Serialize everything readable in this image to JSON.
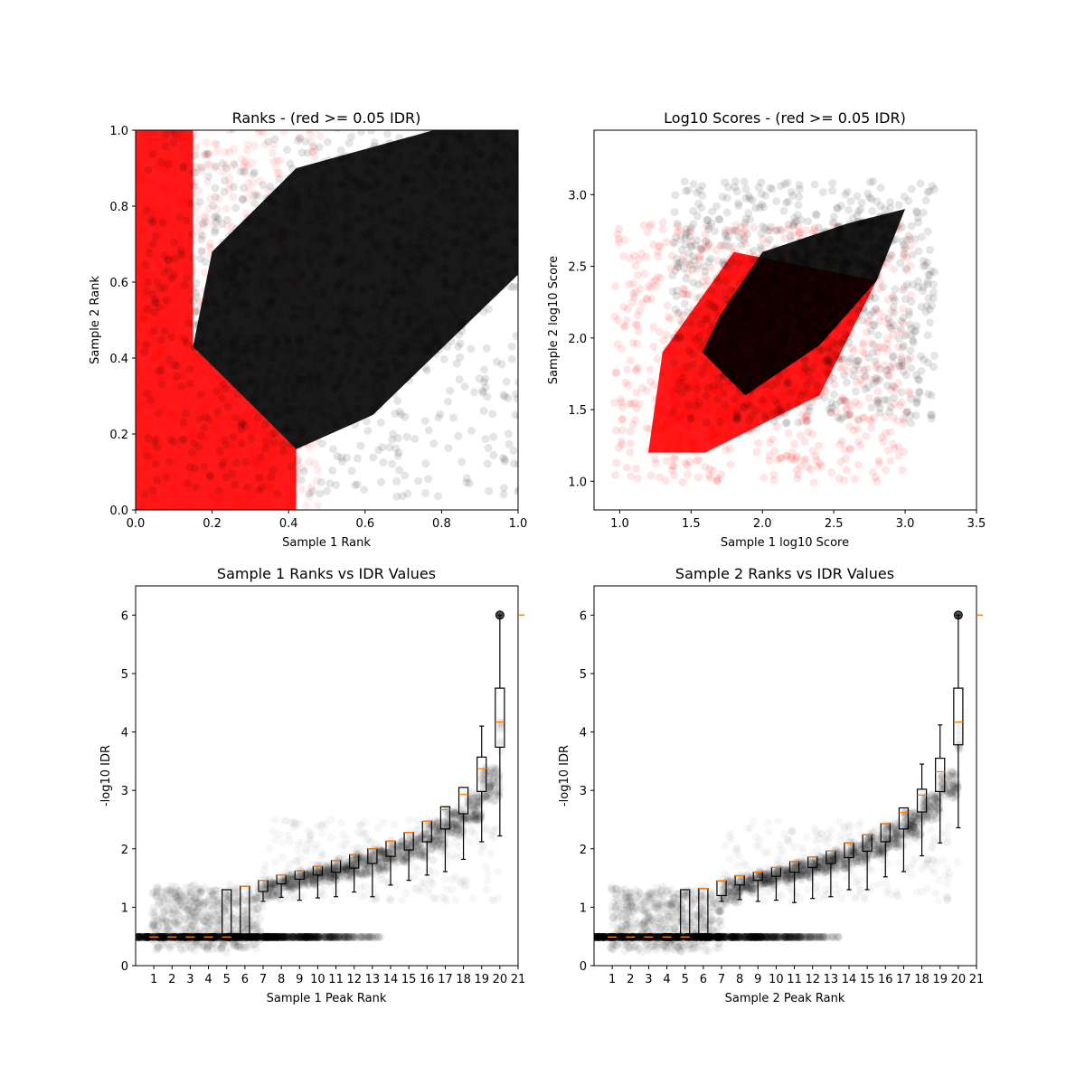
{
  "chart_data": [
    {
      "id": "ranks",
      "type": "scatter",
      "title": "Ranks - (red >= 0.05 IDR)",
      "xlabel": "Sample 1 Rank",
      "ylabel": "Sample 2 Rank",
      "xlim": [
        0.0,
        1.0
      ],
      "ylim": [
        0.0,
        1.0
      ],
      "xticks": [
        "0.0",
        "0.2",
        "0.4",
        "0.6",
        "0.8",
        "1.0"
      ],
      "yticks": [
        "0.0",
        "0.2",
        "0.4",
        "0.6",
        "0.8",
        "1.0"
      ],
      "series": [
        {
          "color": "#ff0000",
          "alpha": 0.08,
          "region": [
            [
              0,
              0
            ],
            [
              0.42,
              0
            ],
            [
              0.42,
              0.16
            ],
            [
              0.15,
              0.43
            ],
            [
              0.15,
              1
            ],
            [
              0,
              1
            ]
          ],
          "approx_points": 1400
        },
        {
          "color": "#000000",
          "alpha": 0.1,
          "region": [
            [
              0.15,
              0.43
            ],
            [
              0.42,
              0.16
            ],
            [
              0.62,
              0.25
            ],
            [
              1,
              0.62
            ],
            [
              1,
              1
            ],
            [
              0.78,
              1
            ],
            [
              0.42,
              0.9
            ],
            [
              0.2,
              0.68
            ]
          ],
          "approx_points": 1600
        }
      ]
    },
    {
      "id": "log10",
      "type": "scatter",
      "title": "Log10 Scores - (red >= 0.05 IDR)",
      "xlabel": "Sample 1 log10 Score",
      "ylabel": "Sample 2 log10 Score",
      "xlim": [
        0.82,
        3.5
      ],
      "ylim": [
        0.8,
        3.45
      ],
      "xticks": [
        1.0,
        1.5,
        2.0,
        2.5,
        3.0,
        3.5
      ],
      "yticks": [
        1.0,
        1.5,
        2.0,
        2.5,
        3.0
      ],
      "series": [
        {
          "color": "#ff0000",
          "alpha": 0.1,
          "region": [
            [
              1.2,
              1.2
            ],
            [
              1.6,
              1.2
            ],
            [
              2.4,
              1.6
            ],
            [
              2.8,
              2.4
            ],
            [
              1.8,
              2.6
            ],
            [
              1.3,
              1.9
            ]
          ],
          "approx_points": 1400
        },
        {
          "color": "#000000",
          "alpha": 0.1,
          "region": [
            [
              1.58,
              1.9
            ],
            [
              1.88,
              1.6
            ],
            [
              2.4,
              1.95
            ],
            [
              2.8,
              2.4
            ],
            [
              3.0,
              2.9
            ],
            [
              2.6,
              2.8
            ],
            [
              2.0,
              2.6
            ],
            [
              1.7,
              2.15
            ]
          ],
          "approx_points": 1200
        }
      ]
    },
    {
      "id": "s1idr",
      "type": "box",
      "title": "Sample 1 Ranks vs IDR Values",
      "xlabel": "Sample 1 Peak Rank",
      "ylabel": "-log10 IDR",
      "xlim": [
        0,
        21
      ],
      "ylim": [
        0,
        6.5
      ],
      "xticks": [
        "1",
        "2",
        "3",
        "4",
        "5",
        "6",
        "7",
        "8",
        "9",
        "10",
        "11",
        "12",
        "13",
        "14",
        "15",
        "16",
        "17",
        "18",
        "19",
        "20",
        "21"
      ],
      "yticks": [
        "0",
        "1",
        "2",
        "3",
        "4",
        "5",
        "6"
      ],
      "boxes": [
        {
          "x": 1,
          "q1": 0.49,
          "median": 0.49,
          "q3": 0.49,
          "wlo": 0.49,
          "whi": 0.49
        },
        {
          "x": 2,
          "q1": 0.49,
          "median": 0.49,
          "q3": 0.49,
          "wlo": 0.49,
          "whi": 0.49
        },
        {
          "x": 3,
          "q1": 0.49,
          "median": 0.49,
          "q3": 0.49,
          "wlo": 0.49,
          "whi": 0.49
        },
        {
          "x": 4,
          "q1": 0.49,
          "median": 0.49,
          "q3": 0.49,
          "wlo": 0.49,
          "whi": 0.49
        },
        {
          "x": 5,
          "q1": 0.49,
          "median": 0.49,
          "q3": 1.3,
          "wlo": 0.49,
          "whi": 1.3
        },
        {
          "x": 6,
          "q1": 0.49,
          "median": 1.36,
          "q3": 1.36,
          "wlo": 0.49,
          "whi": 1.36
        },
        {
          "x": 7,
          "q1": 1.27,
          "median": 1.46,
          "q3": 1.46,
          "wlo": 1.1,
          "whi": 1.46
        },
        {
          "x": 8,
          "q1": 1.4,
          "median": 1.55,
          "q3": 1.55,
          "wlo": 1.17,
          "whi": 1.55
        },
        {
          "x": 9,
          "q1": 1.48,
          "median": 1.62,
          "q3": 1.62,
          "wlo": 1.12,
          "whi": 1.62
        },
        {
          "x": 10,
          "q1": 1.55,
          "median": 1.7,
          "q3": 1.7,
          "wlo": 1.16,
          "whi": 1.7
        },
        {
          "x": 11,
          "q1": 1.6,
          "median": 1.8,
          "q3": 1.8,
          "wlo": 1.18,
          "whi": 1.8
        },
        {
          "x": 12,
          "q1": 1.67,
          "median": 1.9,
          "q3": 1.9,
          "wlo": 1.26,
          "whi": 1.9
        },
        {
          "x": 13,
          "q1": 1.75,
          "median": 2.0,
          "q3": 2.0,
          "wlo": 1.18,
          "whi": 2.0
        },
        {
          "x": 14,
          "q1": 1.87,
          "median": 2.13,
          "q3": 2.13,
          "wlo": 1.38,
          "whi": 2.13
        },
        {
          "x": 15,
          "q1": 1.98,
          "median": 2.28,
          "q3": 2.28,
          "wlo": 1.46,
          "whi": 2.28
        },
        {
          "x": 16,
          "q1": 2.12,
          "median": 2.47,
          "q3": 2.47,
          "wlo": 1.55,
          "whi": 2.47
        },
        {
          "x": 17,
          "q1": 2.34,
          "median": 2.67,
          "q3": 2.72,
          "wlo": 1.61,
          "whi": 2.72
        },
        {
          "x": 18,
          "q1": 2.6,
          "median": 2.93,
          "q3": 3.05,
          "wlo": 1.82,
          "whi": 3.05
        },
        {
          "x": 19,
          "q1": 2.98,
          "median": 3.37,
          "q3": 3.57,
          "wlo": 2.12,
          "whi": 4.1
        },
        {
          "x": 20,
          "q1": 3.74,
          "median": 4.17,
          "q3": 4.75,
          "wlo": 2.22,
          "whi": 6.0
        }
      ]
    },
    {
      "id": "s2idr",
      "type": "box",
      "title": "Sample 2 Ranks vs IDR Values",
      "xlabel": "Sample 2 Peak Rank",
      "ylabel": "-log10 IDR",
      "xlim": [
        0,
        21
      ],
      "ylim": [
        0,
        6.5
      ],
      "xticks": [
        "1",
        "2",
        "3",
        "4",
        "5",
        "6",
        "7",
        "8",
        "9",
        "10",
        "11",
        "12",
        "13",
        "14",
        "15",
        "16",
        "17",
        "18",
        "19",
        "20",
        "21"
      ],
      "yticks": [
        "0",
        "1",
        "2",
        "3",
        "4",
        "5",
        "6"
      ],
      "boxes": [
        {
          "x": 1,
          "q1": 0.49,
          "median": 0.49,
          "q3": 0.49,
          "wlo": 0.49,
          "whi": 0.49
        },
        {
          "x": 2,
          "q1": 0.49,
          "median": 0.49,
          "q3": 0.49,
          "wlo": 0.49,
          "whi": 0.49
        },
        {
          "x": 3,
          "q1": 0.49,
          "median": 0.49,
          "q3": 0.49,
          "wlo": 0.49,
          "whi": 0.49
        },
        {
          "x": 4,
          "q1": 0.49,
          "median": 0.49,
          "q3": 0.49,
          "wlo": 0.49,
          "whi": 0.49
        },
        {
          "x": 5,
          "q1": 0.49,
          "median": 0.49,
          "q3": 1.3,
          "wlo": 0.49,
          "whi": 1.3
        },
        {
          "x": 6,
          "q1": 0.49,
          "median": 1.32,
          "q3": 1.32,
          "wlo": 0.49,
          "whi": 1.32
        },
        {
          "x": 7,
          "q1": 1.2,
          "median": 1.45,
          "q3": 1.45,
          "wlo": 1.1,
          "whi": 1.45
        },
        {
          "x": 8,
          "q1": 1.38,
          "median": 1.54,
          "q3": 1.54,
          "wlo": 1.13,
          "whi": 1.54
        },
        {
          "x": 9,
          "q1": 1.46,
          "median": 1.6,
          "q3": 1.6,
          "wlo": 1.1,
          "whi": 1.6
        },
        {
          "x": 10,
          "q1": 1.53,
          "median": 1.68,
          "q3": 1.68,
          "wlo": 1.12,
          "whi": 1.68
        },
        {
          "x": 11,
          "q1": 1.6,
          "median": 1.78,
          "q3": 1.78,
          "wlo": 1.08,
          "whi": 1.78
        },
        {
          "x": 12,
          "q1": 1.68,
          "median": 1.86,
          "q3": 1.86,
          "wlo": 1.15,
          "whi": 1.86
        },
        {
          "x": 13,
          "q1": 1.75,
          "median": 1.96,
          "q3": 1.96,
          "wlo": 1.18,
          "whi": 1.96
        },
        {
          "x": 14,
          "q1": 1.85,
          "median": 2.1,
          "q3": 2.1,
          "wlo": 1.3,
          "whi": 2.1
        },
        {
          "x": 15,
          "q1": 1.96,
          "median": 2.24,
          "q3": 2.24,
          "wlo": 1.3,
          "whi": 2.24
        },
        {
          "x": 16,
          "q1": 2.12,
          "median": 2.43,
          "q3": 2.43,
          "wlo": 1.52,
          "whi": 2.43
        },
        {
          "x": 17,
          "q1": 2.34,
          "median": 2.62,
          "q3": 2.7,
          "wlo": 1.61,
          "whi": 2.7
        },
        {
          "x": 18,
          "q1": 2.63,
          "median": 2.92,
          "q3": 3.02,
          "wlo": 1.88,
          "whi": 3.45
        },
        {
          "x": 19,
          "q1": 2.98,
          "median": 3.32,
          "q3": 3.55,
          "wlo": 2.1,
          "whi": 4.12
        },
        {
          "x": 20,
          "q1": 3.78,
          "median": 4.17,
          "q3": 4.75,
          "wlo": 2.36,
          "whi": 6.0
        }
      ]
    }
  ]
}
